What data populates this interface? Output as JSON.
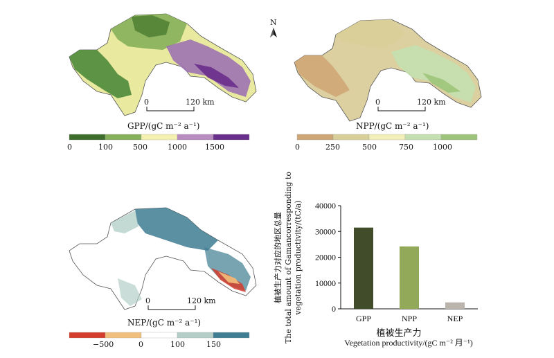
{
  "maps": {
    "north_label": "N",
    "gpp": {
      "legend_title": "GPP/(gC m⁻² a⁻¹)",
      "tick_labels": [
        "0",
        "100",
        "500",
        "1000",
        "1500"
      ],
      "colors": [
        "#3e6e2c",
        "#87b05a",
        "#f3f0b0",
        "#b88cc0",
        "#6a2f8c"
      ],
      "scalebar_zero": "0",
      "scalebar_km": "120 km"
    },
    "npp": {
      "legend_title": "NPP/(gC m⁻² a⁻¹)",
      "tick_labels": [
        "0",
        "250",
        "500",
        "750",
        "1000"
      ],
      "colors": [
        "#cfa676",
        "#d9cf98",
        "#f2eeb8",
        "#c4dfb0",
        "#9dc47a"
      ],
      "scalebar_zero": "0",
      "scalebar_km": "120 km"
    },
    "nep": {
      "legend_title": "NEP/(gC m⁻² a⁻¹)",
      "tick_labels": [
        "−500",
        "0",
        "100",
        "150"
      ],
      "colors": [
        "#d43c2c",
        "#f1c07c",
        "#ffffff",
        "#b4cfc8",
        "#3e7d92"
      ],
      "scalebar_zero": "0",
      "scalebar_km": "120 km"
    }
  },
  "chart_data": {
    "type": "bar",
    "categories": [
      "GPP",
      "NPP",
      "NEP"
    ],
    "values": [
      31500,
      24200,
      2500
    ],
    "bar_colors": [
      "#414c2a",
      "#93a95a",
      "#bbb4ac"
    ],
    "ylim": [
      0,
      40000
    ],
    "yticks": [
      0,
      10000,
      20000,
      30000,
      40000
    ],
    "ylabel_cn": "植被生产力对应的地区总量",
    "ylabel_en_1": "The total amount of Gamancorresponding to",
    "ylabel_en_2": "vegetation productivity/(tC/a)",
    "xlabel_cn": "植被生产力",
    "xlabel_en": "Vegetation productivity/(gC m⁻² 月⁻¹)"
  }
}
